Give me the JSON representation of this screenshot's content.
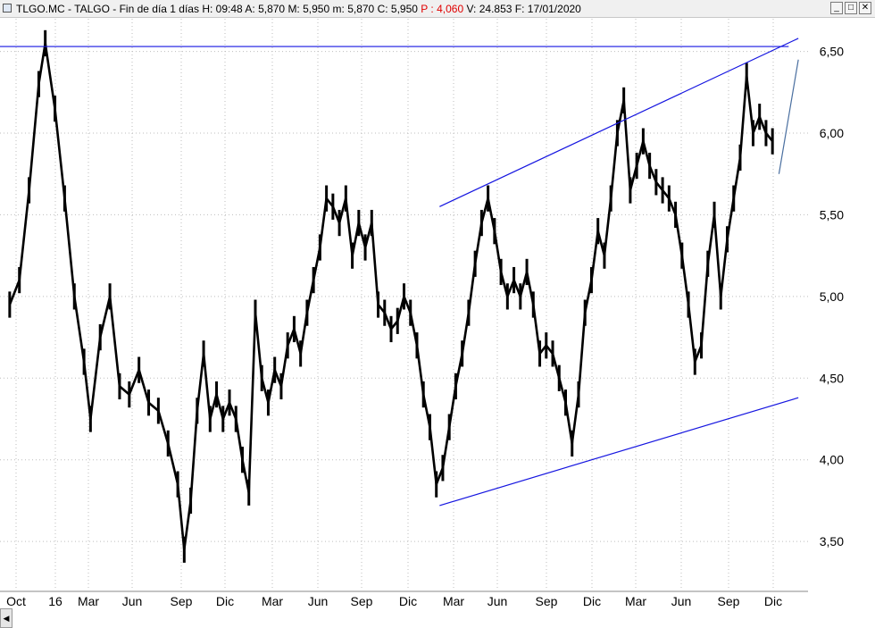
{
  "window": {
    "ticker": "TLGO.MC",
    "name": "TALGO",
    "period": "Fin de día 1 días",
    "high_label": "H:",
    "high_value": "09:48",
    "open_label": "A:",
    "open_value": "5,870",
    "max_label": "M:",
    "max_value": "5,950",
    "min_label": "m:",
    "min_value": "5,870",
    "close_label": "C:",
    "close_value": "5,950",
    "p_label": "P :",
    "p_value": "4,060",
    "volume_label": "V:",
    "volume_value": "24.853",
    "date_label": "F:",
    "date_value": "17/01/2020",
    "buttons": [
      "_",
      "□",
      "✕"
    ],
    "scroll_left": "◀"
  },
  "colors": {
    "price": "#000000",
    "trendline": "#1515e0",
    "grid": "#bdbdbd",
    "accent_p": "#e00000"
  },
  "chart_data": {
    "type": "line",
    "title": "TLGO.MC - TALGO",
    "y_ticks": [
      "6,50",
      "6,00",
      "5,50",
      "5,00",
      "4,50",
      "4,00",
      "3,50"
    ],
    "ylim": [
      3.2,
      6.7
    ],
    "x_labels": [
      "Oct",
      "16",
      "Mar",
      "Jun",
      "Sep",
      "Dic",
      "Mar",
      "Jun",
      "Sep",
      "Dic",
      "Mar",
      "Jun",
      "Sep",
      "Dic",
      "Mar",
      "Jun",
      "Sep",
      "Dic"
    ],
    "grid": true,
    "series": [
      {
        "values": [
          [
            0,
            4.95
          ],
          [
            0.03,
            5.1
          ],
          [
            0.06,
            5.65
          ],
          [
            0.09,
            6.3
          ],
          [
            0.11,
            6.55
          ],
          [
            0.14,
            6.15
          ],
          [
            0.17,
            5.6
          ],
          [
            0.2,
            5.0
          ],
          [
            0.23,
            4.6
          ],
          [
            0.25,
            4.25
          ],
          [
            0.28,
            4.75
          ],
          [
            0.31,
            5.0
          ],
          [
            0.34,
            4.45
          ],
          [
            0.37,
            4.4
          ],
          [
            0.4,
            4.55
          ],
          [
            0.43,
            4.35
          ],
          [
            0.46,
            4.3
          ],
          [
            0.49,
            4.1
          ],
          [
            0.52,
            3.85
          ],
          [
            0.54,
            3.45
          ],
          [
            0.56,
            3.75
          ],
          [
            0.58,
            4.3
          ],
          [
            0.6,
            4.65
          ],
          [
            0.62,
            4.25
          ],
          [
            0.64,
            4.4
          ],
          [
            0.66,
            4.25
          ],
          [
            0.68,
            4.35
          ],
          [
            0.7,
            4.25
          ],
          [
            0.72,
            4.0
          ],
          [
            0.74,
            3.8
          ],
          [
            0.76,
            4.9
          ],
          [
            0.78,
            4.5
          ],
          [
            0.8,
            4.35
          ],
          [
            0.82,
            4.55
          ],
          [
            0.84,
            4.45
          ],
          [
            0.86,
            4.7
          ],
          [
            0.88,
            4.8
          ],
          [
            0.9,
            4.65
          ],
          [
            0.92,
            4.9
          ],
          [
            0.94,
            5.1
          ],
          [
            0.96,
            5.3
          ],
          [
            0.98,
            5.6
          ],
          [
            1.0,
            5.55
          ],
          [
            1.02,
            5.45
          ],
          [
            1.04,
            5.6
          ],
          [
            1.06,
            5.25
          ],
          [
            1.08,
            5.45
          ],
          [
            1.1,
            5.3
          ],
          [
            1.12,
            5.45
          ],
          [
            1.14,
            4.95
          ],
          [
            1.16,
            4.9
          ],
          [
            1.18,
            4.8
          ],
          [
            1.2,
            4.85
          ],
          [
            1.22,
            5.0
          ],
          [
            1.24,
            4.9
          ],
          [
            1.26,
            4.7
          ],
          [
            1.28,
            4.4
          ],
          [
            1.3,
            4.2
          ],
          [
            1.32,
            3.85
          ],
          [
            1.34,
            3.95
          ],
          [
            1.36,
            4.2
          ],
          [
            1.38,
            4.45
          ],
          [
            1.4,
            4.65
          ],
          [
            1.42,
            4.9
          ],
          [
            1.44,
            5.2
          ],
          [
            1.46,
            5.45
          ],
          [
            1.48,
            5.6
          ],
          [
            1.5,
            5.4
          ],
          [
            1.52,
            5.15
          ],
          [
            1.54,
            5.0
          ],
          [
            1.56,
            5.1
          ],
          [
            1.58,
            5.0
          ],
          [
            1.6,
            5.15
          ],
          [
            1.62,
            4.95
          ],
          [
            1.64,
            4.65
          ],
          [
            1.66,
            4.7
          ],
          [
            1.68,
            4.65
          ],
          [
            1.7,
            4.5
          ],
          [
            1.72,
            4.35
          ],
          [
            1.74,
            4.1
          ],
          [
            1.76,
            4.4
          ],
          [
            1.78,
            4.9
          ],
          [
            1.8,
            5.1
          ],
          [
            1.82,
            5.4
          ],
          [
            1.84,
            5.25
          ],
          [
            1.86,
            5.6
          ],
          [
            1.88,
            6.0
          ],
          [
            1.9,
            6.2
          ],
          [
            1.92,
            5.65
          ],
          [
            1.94,
            5.8
          ],
          [
            1.96,
            5.95
          ],
          [
            1.98,
            5.8
          ],
          [
            2.0,
            5.7
          ],
          [
            2.02,
            5.65
          ],
          [
            2.04,
            5.6
          ],
          [
            2.06,
            5.5
          ],
          [
            2.08,
            5.25
          ],
          [
            2.1,
            4.95
          ],
          [
            2.12,
            4.6
          ],
          [
            2.14,
            4.7
          ],
          [
            2.16,
            5.2
          ],
          [
            2.18,
            5.5
          ],
          [
            2.2,
            5.0
          ],
          [
            2.22,
            5.35
          ],
          [
            2.24,
            5.6
          ],
          [
            2.26,
            5.85
          ],
          [
            2.28,
            6.35
          ],
          [
            2.3,
            6.0
          ],
          [
            2.32,
            6.1
          ],
          [
            2.34,
            6.0
          ],
          [
            2.36,
            5.95
          ]
        ]
      }
    ],
    "annotations": [
      {
        "type": "line",
        "label": "trendline-top",
        "from": [
          1.33,
          5.55
        ],
        "to": [
          2.44,
          6.58
        ]
      },
      {
        "type": "line",
        "label": "trendline-bottom",
        "from": [
          1.33,
          3.72
        ],
        "to": [
          2.44,
          4.38
        ]
      },
      {
        "type": "hline",
        "label": "horizontal-resistance",
        "from": [
          -0.03,
          6.53
        ],
        "to": [
          2.41,
          6.53
        ]
      },
      {
        "type": "line",
        "label": "projection",
        "from": [
          2.38,
          5.75
        ],
        "to": [
          2.44,
          6.45
        ]
      }
    ]
  }
}
